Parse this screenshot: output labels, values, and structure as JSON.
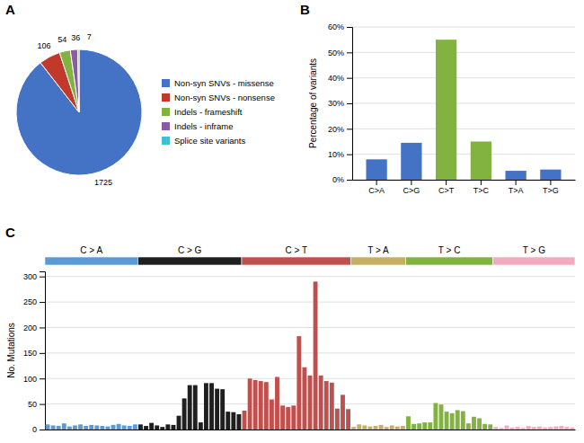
{
  "chart_data": [
    {
      "type": "pie",
      "title": "A",
      "categories": [
        "Non-syn SNVs - missense",
        "Non-syn SNVs - nonsense",
        "Indels - frameshift",
        "Indels - inframe",
        "Splice site variants"
      ],
      "values": [
        1725,
        106,
        54,
        36,
        7
      ],
      "colors": [
        "#4472C4",
        "#C0392B",
        "#82B341",
        "#8B5BA6",
        "#40BFD0"
      ],
      "data_labels": true,
      "legend": "right"
    },
    {
      "type": "bar",
      "title": "B",
      "categories": [
        "C>A",
        "C>G",
        "C>T",
        "T>C",
        "T>A",
        "T>G"
      ],
      "values": [
        8.0,
        14.5,
        55.0,
        15.0,
        3.5,
        4.0
      ],
      "colors": [
        "#4472C4",
        "#4472C4",
        "#82B341",
        "#82B341",
        "#4472C4",
        "#4472C4"
      ],
      "y_label": "Percentage of variants",
      "ylim": [
        0,
        60
      ],
      "yticks": [
        {
          "value": 0,
          "label": "0%"
        },
        {
          "value": 10,
          "label": "10%"
        },
        {
          "value": 20,
          "label": "20%"
        },
        {
          "value": 30,
          "label": "30%"
        },
        {
          "value": 40,
          "label": "40%"
        },
        {
          "value": 50,
          "label": "50%"
        },
        {
          "value": 60,
          "label": "60%"
        }
      ],
      "grid": true
    },
    {
      "type": "bar",
      "title": "C",
      "series": [
        {
          "name": "C > A",
          "color": "#5B9BD5",
          "values": [
            10,
            8,
            7,
            12,
            6,
            8,
            10,
            7,
            9,
            8,
            7,
            6,
            9,
            11,
            8,
            7,
            10
          ]
        },
        {
          "name": "C > G",
          "color": "#1F1F1F",
          "values": [
            10,
            7,
            13,
            8,
            5,
            10,
            9,
            27,
            61,
            87,
            87,
            14,
            91,
            91,
            80,
            79,
            35,
            34,
            30
          ]
        },
        {
          "name": "C > T",
          "color": "#C0504D",
          "values": [
            37,
            100,
            97,
            95,
            93,
            59,
            103,
            47,
            44,
            47,
            183,
            122,
            106,
            290,
            106,
            95,
            92,
            41,
            68,
            40
          ]
        },
        {
          "name": "T > A",
          "color": "#C4B060",
          "values": [
            5,
            10,
            8,
            6,
            7,
            9,
            5,
            8,
            6,
            7
          ]
        },
        {
          "name": "T > C",
          "color": "#82B341",
          "values": [
            26,
            11,
            12,
            14,
            14,
            52,
            49,
            35,
            32,
            38,
            36,
            12,
            25,
            22,
            11,
            10
          ]
        },
        {
          "name": "T > G",
          "color": "#F2AABF",
          "values": [
            5,
            3,
            8,
            4,
            5,
            3,
            7,
            5,
            6,
            4,
            5,
            6,
            7,
            5,
            4
          ]
        }
      ],
      "y_label": "No. Mutations",
      "ylim": [
        0,
        310
      ],
      "yticks": [
        0,
        50,
        100,
        150,
        200,
        250,
        300
      ],
      "grid": true,
      "tick_labels": "y"
    }
  ]
}
